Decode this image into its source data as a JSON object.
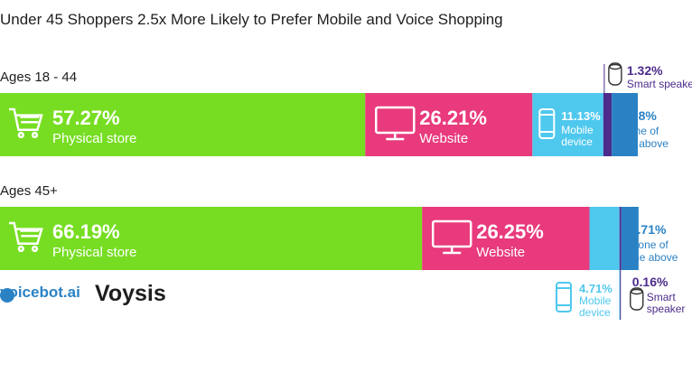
{
  "title": "Under 45 Shoppers 2.5x More Likely to Prefer Mobile and Voice Shopping",
  "rows": [
    {
      "label": "Ages 18 - 44"
    },
    {
      "label": "Ages 45+"
    }
  ],
  "logos": {
    "voicebot": "voicebot.ai",
    "voysis": "Voysis"
  },
  "chart_data": {
    "type": "bar",
    "stacked": true,
    "orientation": "horizontal",
    "categories": [
      "Ages 18 - 44",
      "Ages 45+"
    ],
    "series": [
      {
        "name": "Physical store",
        "values": [
          57.27,
          66.19
        ],
        "labels": [
          "57.27%",
          "66.19%"
        ],
        "color": "#77dd22",
        "icon": "shopping-cart-icon"
      },
      {
        "name": "Website",
        "values": [
          26.21,
          26.25
        ],
        "labels": [
          "26.21%",
          "26.25%"
        ],
        "color": "#e83a7c",
        "icon": "monitor-icon"
      },
      {
        "name": "Mobile device",
        "values": [
          11.13,
          4.71
        ],
        "labels": [
          "11.13%",
          "4.71%"
        ],
        "color": "#4fc8ee",
        "icon": "mobile-phone-icon",
        "display": "Mobile\ndevice"
      },
      {
        "name": "Smart speaker",
        "values": [
          1.32,
          0.16
        ],
        "labels": [
          "1.32%",
          "0.16%"
        ],
        "color": "#4c2b8c",
        "icon": "smart-speaker-icon",
        "display": [
          "Smart speake",
          "Smart\nspeaker"
        ]
      },
      {
        "name": "None of the above",
        "values": [
          4.08,
          2.71
        ],
        "labels": [
          "4.08%",
          "2.71%"
        ],
        "color": "#2a82c4",
        "display": "None of\nthe above"
      }
    ]
  }
}
